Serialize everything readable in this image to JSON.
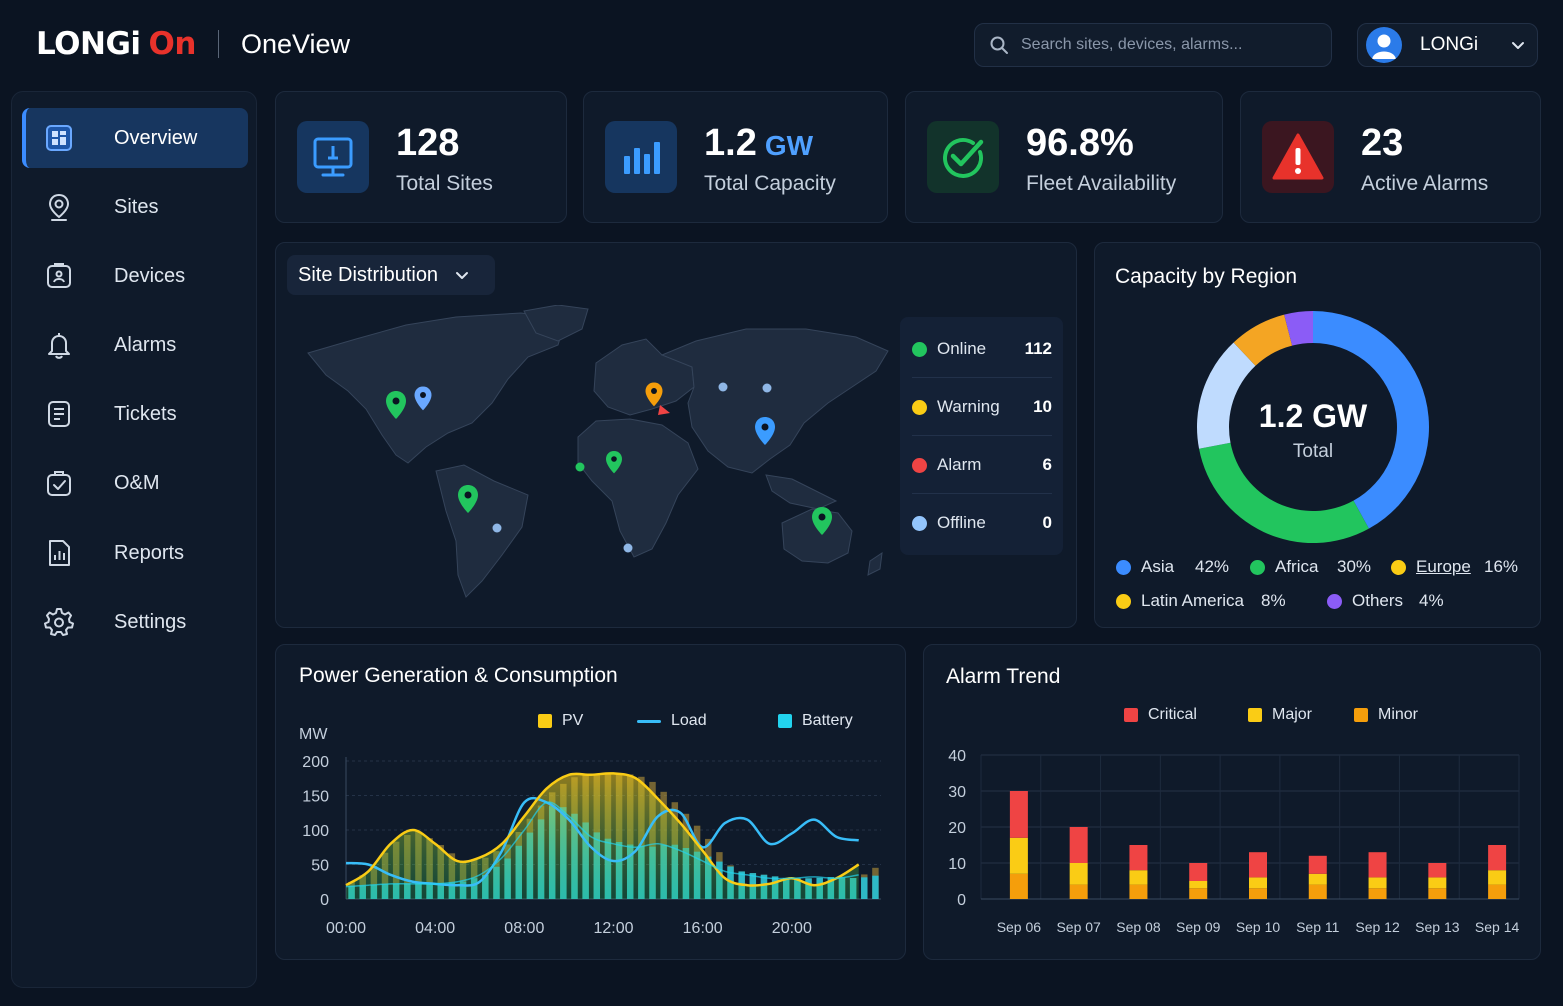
{
  "header": {
    "logo_primary": "LONGi",
    "logo_accent": "On",
    "app_name": "OneView",
    "search_placeholder": "Search sites, devices, alarms...",
    "user_name": "LONGi"
  },
  "sidebar": {
    "items": [
      {
        "label": "Overview",
        "icon": "dashboard-icon",
        "active": true
      },
      {
        "label": "Sites",
        "icon": "location-pin-icon"
      },
      {
        "label": "Devices",
        "icon": "device-icon"
      },
      {
        "label": "Alarms",
        "icon": "bell-icon"
      },
      {
        "label": "Tickets",
        "icon": "ticket-icon"
      },
      {
        "label": "O&M",
        "icon": "maintenance-icon"
      },
      {
        "label": "Reports",
        "icon": "report-icon"
      },
      {
        "label": "Settings",
        "icon": "gear-icon"
      }
    ]
  },
  "stats": [
    {
      "value": "128",
      "unit": "",
      "label": "Total Sites",
      "icon": "monitor-icon",
      "color": "#3b8cff"
    },
    {
      "value": "1.2",
      "unit": "GW",
      "label": "Total Capacity",
      "icon": "bar-chart-icon",
      "color": "#3b8cff"
    },
    {
      "value": "96.8%",
      "unit": "",
      "label": "Fleet Availability",
      "icon": "check-circle-icon",
      "color": "#22c55e"
    },
    {
      "value": "23",
      "unit": "",
      "label": "Active Alarms",
      "icon": "warning-icon",
      "color": "#e8322b"
    }
  ],
  "site_distribution": {
    "title": "Site Distribution",
    "legend": [
      {
        "name": "Online",
        "count": "112",
        "color": "#22c55e"
      },
      {
        "name": "Warning",
        "count": "10",
        "color": "#facc15"
      },
      {
        "name": "Alarm",
        "count": "6",
        "color": "#ef4444"
      },
      {
        "name": "Offline",
        "count": "0",
        "color": "#93c5fd"
      }
    ]
  },
  "capacity_by_region": {
    "title": "Capacity by Region",
    "center_value": "1.2 GW",
    "center_label": "Total",
    "chart_data": {
      "type": "pie",
      "categories": [
        "Asia",
        "Africa",
        "Europe",
        "Latin America",
        "Others"
      ],
      "values": [
        42,
        30,
        16,
        8,
        4
      ],
      "labels": [
        "42%",
        "30%",
        "16%",
        "8%",
        "4%"
      ],
      "colors": [
        "#3b8cff",
        "#22c55e",
        "#bfdbfe",
        "#f4a523",
        "#8b5cf6"
      ],
      "legend_colors": [
        "#3b8cff",
        "#22c55e",
        "#facc15",
        "#facc15",
        "#8b5cf6"
      ]
    }
  },
  "power_chart": {
    "title": "Power Generation & Consumption",
    "chart_data": {
      "type": "line",
      "ylabel": "MW",
      "ylim": [
        0,
        200
      ],
      "yticks": [
        "200",
        "150",
        "100",
        "50",
        "0"
      ],
      "xticks": [
        "00:00",
        "04:00",
        "08:00",
        "12:00",
        "16:00",
        "20:00"
      ],
      "series": [
        {
          "name": "PV",
          "color": "#facc15",
          "x": [
            0,
            1,
            2,
            3,
            4,
            5,
            6,
            7,
            8,
            9,
            10,
            11,
            12,
            13,
            14,
            15,
            16,
            17,
            18,
            19,
            20,
            21,
            22,
            23
          ],
          "values": [
            20,
            40,
            80,
            100,
            80,
            55,
            60,
            80,
            120,
            160,
            180,
            180,
            182,
            175,
            145,
            110,
            70,
            30,
            20,
            22,
            30,
            20,
            30,
            50
          ]
        },
        {
          "name": "Load",
          "color": "#38bdf8",
          "x": [
            0,
            1,
            2,
            3,
            4,
            5,
            6,
            7,
            8,
            9,
            10,
            11,
            12,
            13,
            14,
            15,
            16,
            17,
            18,
            19,
            20,
            21,
            22,
            23
          ],
          "values": [
            52,
            50,
            35,
            25,
            22,
            20,
            25,
            70,
            140,
            140,
            115,
            75,
            55,
            70,
            120,
            125,
            75,
            110,
            115,
            80,
            95,
            115,
            90,
            85
          ]
        },
        {
          "name": "Battery",
          "color": "#22d3ee",
          "x": [
            0,
            1,
            2,
            3,
            4,
            5,
            6,
            7,
            8,
            9,
            10,
            11,
            12,
            13,
            14,
            15,
            16,
            17,
            18,
            19,
            20,
            21,
            22,
            23
          ],
          "values": [
            18,
            20,
            22,
            22,
            22,
            25,
            35,
            60,
            100,
            140,
            120,
            90,
            80,
            75,
            80,
            70,
            55,
            40,
            35,
            30,
            30,
            32,
            30,
            35
          ]
        }
      ]
    }
  },
  "alarm_chart": {
    "title": "Alarm Trend",
    "chart_data": {
      "type": "bar",
      "stacked": true,
      "ylim": [
        0,
        40
      ],
      "yticks": [
        "40",
        "30",
        "20",
        "10",
        "0"
      ],
      "categories": [
        "Sep 06",
        "Sep 07",
        "Sep 08",
        "Sep 09",
        "Sep 10",
        "Sep 11",
        "Sep 12",
        "Sep 13",
        "Sep 14"
      ],
      "series": [
        {
          "name": "Critical",
          "color": "#ef4444",
          "values": [
            13,
            10,
            7,
            5,
            7,
            5,
            7,
            4,
            7
          ]
        },
        {
          "name": "Major",
          "color": "#facc15",
          "values": [
            10,
            6,
            4,
            2,
            3,
            3,
            3,
            3,
            4
          ]
        },
        {
          "name": "Minor",
          "color": "#f59e0b",
          "values": [
            7,
            4,
            4,
            3,
            3,
            4,
            3,
            3,
            4
          ]
        }
      ]
    }
  }
}
